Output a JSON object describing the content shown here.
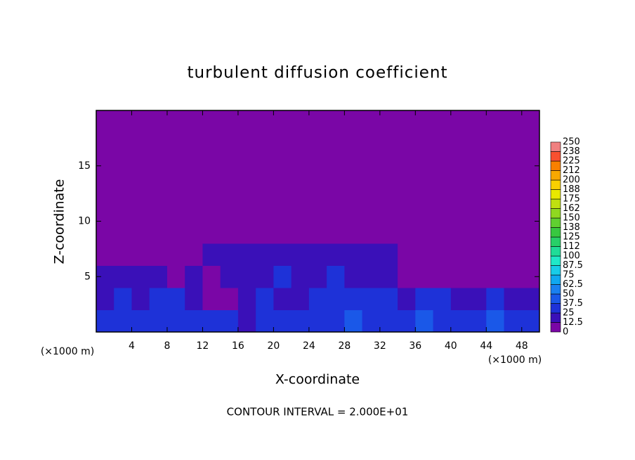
{
  "chart_data": {
    "type": "contour",
    "title": "turbulent diffusion coefficient",
    "x_label": "X-coordinate",
    "y_label": "Z-coordinate",
    "x_unit": "(×1000 m)",
    "y_unit": "(×1000 m)",
    "annotation": "CONTOUR INTERVAL = 2.000E+01",
    "xlim": [
      0,
      50
    ],
    "ylim": [
      0,
      20
    ],
    "xticks": [
      4,
      8,
      12,
      16,
      20,
      24,
      28,
      32,
      36,
      40,
      44,
      48
    ],
    "yticks": [
      5,
      10,
      15
    ],
    "levels": [
      0,
      12.5,
      25,
      37.5,
      50,
      62.5,
      75,
      87.5,
      100,
      {
        "value": 112.5,
        "label": "112"
      },
      125,
      {
        "value": 137.5,
        "label": "138"
      },
      150,
      {
        "value": 162.5,
        "label": "162"
      },
      175,
      {
        "value": 187.5,
        "label": "188"
      },
      200,
      {
        "value": 212.5,
        "label": "212"
      },
      225,
      {
        "value": 237.5,
        "label": "238"
      },
      250
    ],
    "colors": [
      "#7a06a6",
      "#3a10b8",
      "#1e32d8",
      "#1a58e8",
      "#1a80f0",
      "#10a8f0",
      "#18cce8",
      "#20e8c8",
      "#20dc98",
      "#28d068",
      "#38c840",
      "#60d030",
      "#90d820",
      "#c0e010",
      "#e8e800",
      "#f8d000",
      "#f8a800",
      "#f88000",
      "#f85030",
      "#f08080"
    ],
    "values": [
      [
        30,
        28,
        25,
        32,
        35,
        30,
        28,
        25,
        22,
        30,
        35,
        30,
        25,
        32,
        40,
        28,
        30,
        35,
        38,
        32,
        28,
        25,
        40,
        35,
        30
      ],
      [
        22,
        25,
        20,
        30,
        28,
        18,
        10,
        8,
        15,
        25,
        22,
        18,
        30,
        28,
        25,
        35,
        25,
        22,
        28,
        30,
        20,
        15,
        25,
        22,
        18
      ],
      [
        15,
        18,
        20,
        22,
        12,
        14,
        10,
        15,
        18,
        20,
        25,
        22,
        20,
        25,
        18,
        15,
        14,
        12,
        8,
        10,
        12,
        10,
        6,
        8,
        12
      ],
      [
        2,
        3,
        4,
        5,
        6,
        10,
        14,
        16,
        18,
        20,
        22,
        18,
        16,
        15,
        14,
        16,
        14,
        8,
        5,
        4,
        3,
        3,
        2,
        2,
        2
      ],
      [
        0,
        0,
        0,
        0,
        0,
        0,
        0,
        0,
        0,
        0,
        0,
        0,
        0,
        0,
        0,
        0,
        0,
        0,
        0,
        0,
        0,
        0,
        0,
        0,
        0
      ],
      [
        0,
        0,
        0,
        0,
        0,
        0,
        0,
        0,
        0,
        0,
        0,
        0,
        0,
        0,
        0,
        0,
        0,
        0,
        0,
        0,
        0,
        0,
        0,
        0,
        0
      ],
      [
        0,
        0,
        0,
        0,
        0,
        0,
        0,
        0,
        0,
        0,
        0,
        0,
        0,
        0,
        0,
        0,
        0,
        0,
        0,
        0,
        0,
        0,
        0,
        0,
        0
      ],
      [
        0,
        0,
        0,
        0,
        0,
        0,
        0,
        0,
        0,
        0,
        0,
        0,
        0,
        0,
        0,
        0,
        0,
        0,
        0,
        0,
        0,
        0,
        0,
        0,
        0
      ],
      [
        0,
        0,
        0,
        0,
        0,
        0,
        0,
        0,
        0,
        0,
        0,
        0,
        0,
        0,
        0,
        0,
        0,
        0,
        0,
        0,
        0,
        0,
        0,
        0,
        0
      ],
      [
        0,
        0,
        0,
        0,
        0,
        0,
        0,
        0,
        0,
        0,
        0,
        0,
        0,
        0,
        0,
        0,
        0,
        0,
        0,
        0,
        0,
        0,
        0,
        0,
        0
      ]
    ]
  }
}
